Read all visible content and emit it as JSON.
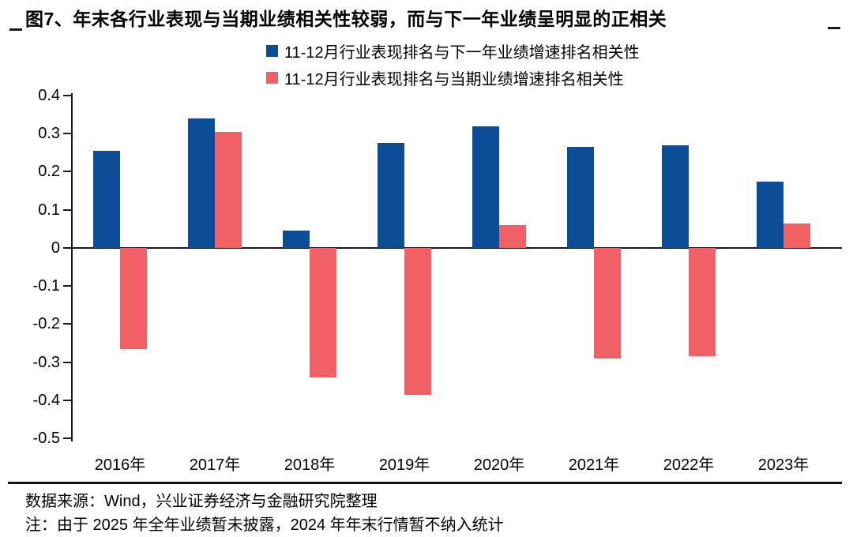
{
  "title": "图7、年末各行业表现与当期业绩相关性较弱，而与下一年业绩呈明显的正相关",
  "colors": {
    "series_blue": "#0B4D97",
    "series_red": "#F06065",
    "axis": "#1a1a1a"
  },
  "chart_data": {
    "type": "bar",
    "title": "图7、年末各行业表现与当期业绩相关性较弱，而与下一年业绩呈明显的正相关",
    "categories": [
      "2016年",
      "2017年",
      "2018年",
      "2019年",
      "2020年",
      "2021年",
      "2022年",
      "2023年"
    ],
    "series": [
      {
        "name": "11-12月行业表现排名与下一年业绩增速排名相关性",
        "color": "#0B4D97",
        "values": [
          0.255,
          0.34,
          0.045,
          0.275,
          0.32,
          0.265,
          0.27,
          0.175
        ]
      },
      {
        "name": "11-12月行业表现排名与当期业绩增速排名相关性",
        "color": "#F06065",
        "values": [
          -0.265,
          0.305,
          -0.34,
          -0.385,
          0.06,
          -0.29,
          -0.285,
          0.065
        ]
      }
    ],
    "xlabel": "",
    "ylabel": "",
    "ylim": [
      -0.5,
      0.4
    ],
    "y_ticks": [
      "0.4",
      "0.3",
      "0.2",
      "0.1",
      "0",
      "-0.1",
      "-0.2",
      "-0.3",
      "-0.4",
      "-0.5"
    ],
    "legend_position": "top-center",
    "grid": false
  },
  "footer": {
    "source": "数据来源：Wind，兴业证券经济与金融研究院整理",
    "note": "注：由于 2025 年全年业绩暂未披露，2024 年年末行情暂不纳入统计"
  }
}
